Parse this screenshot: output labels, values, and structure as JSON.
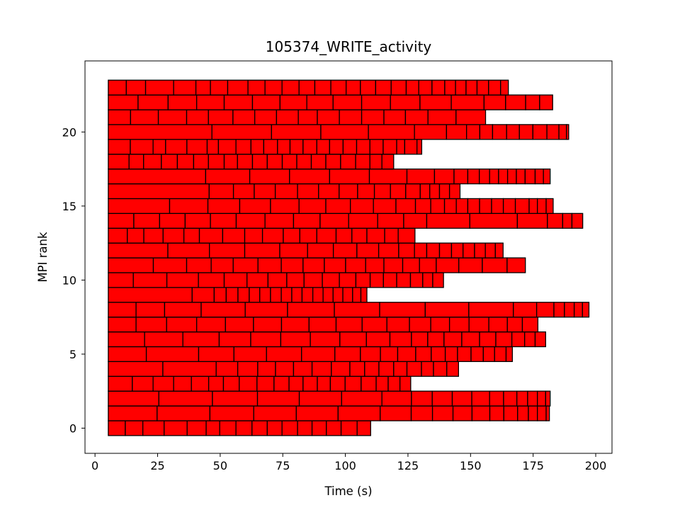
{
  "chart_data": {
    "type": "bar",
    "orientation": "horizontal-gantt",
    "title": "105374_WRITE_activity",
    "xlabel": "Time (s)",
    "ylabel": "MPI rank",
    "xlim": [
      -4,
      206.5
    ],
    "ylim": [
      -1.7,
      24.8
    ],
    "xticks": [
      0,
      25,
      50,
      75,
      100,
      125,
      150,
      175,
      200
    ],
    "xtick_labels": [
      "0",
      "25",
      "50",
      "75",
      "100",
      "125",
      "150",
      "175",
      "200"
    ],
    "yticks": [
      0,
      5,
      10,
      15,
      20
    ],
    "ytick_labels": [
      "0",
      "5",
      "10",
      "15",
      "20"
    ],
    "grid": false,
    "bar_color": "#ff0000",
    "edge_color": "#000000",
    "bar_height": 1,
    "ranks": [
      {
        "rank": 0,
        "boundaries": [
          5.3,
          12.1,
          19.1,
          27.6,
          36.8,
          44.4,
          49.8,
          56.3,
          62.7,
          68.8,
          74.7,
          80.9,
          86.7,
          92.4,
          98.3,
          104.7,
          110.1
        ]
      },
      {
        "rank": 1,
        "boundaries": [
          5.3,
          24.8,
          45.9,
          63.4,
          80.4,
          97.1,
          113.9,
          126.3,
          134.8,
          143.0,
          150.6,
          157.7,
          163.3,
          168.8,
          173.1,
          176.7,
          180.2,
          181.5
        ]
      },
      {
        "rank": 2,
        "boundaries": [
          5.3,
          25.5,
          46.9,
          64.9,
          81.6,
          98.5,
          114.6,
          126.4,
          134.7,
          142.7,
          150.5,
          157.6,
          163.2,
          168.5,
          172.8,
          176.7,
          180.0,
          181.8
        ]
      },
      {
        "rank": 3,
        "boundaries": [
          5.3,
          14.9,
          23.2,
          31.4,
          38.5,
          45.4,
          51.3,
          57.6,
          64.7,
          71.5,
          77.5,
          83.1,
          88.8,
          94.0,
          99.9,
          106.3,
          112.3,
          117.1,
          121.8,
          126.1
        ]
      },
      {
        "rank": 4,
        "boundaries": [
          5.3,
          27.1,
          48.4,
          57.0,
          65.0,
          72.1,
          79.3,
          86.7,
          94.4,
          101.8,
          107.7,
          113.4,
          119.3,
          124.6,
          130.4,
          135.2,
          140.5,
          145.2
        ]
      },
      {
        "rank": 5,
        "boundaries": [
          5.3,
          20.5,
          41.4,
          55.5,
          68.5,
          82.5,
          95.8,
          106.0,
          114.0,
          120.9,
          128.1,
          134.3,
          139.9,
          144.8,
          150.2,
          155.1,
          159.6,
          164.2,
          166.7
        ]
      },
      {
        "rank": 6,
        "boundaries": [
          5.3,
          19.8,
          35.1,
          49.6,
          62.2,
          74.2,
          86.0,
          97.8,
          108.4,
          117.8,
          126.4,
          132.9,
          139.4,
          146.5,
          153.6,
          160.1,
          166.5,
          171.6,
          175.8,
          180.0
        ]
      },
      {
        "rank": 7,
        "boundaries": [
          5.3,
          16.4,
          28.6,
          40.6,
          52.1,
          63.3,
          74.5,
          85.5,
          96.3,
          106.7,
          116.6,
          125.6,
          134.1,
          141.6,
          149.4,
          157.3,
          164.7,
          170.7,
          176.9
        ]
      },
      {
        "rank": 8,
        "boundaries": [
          5.3,
          16.4,
          27.8,
          42.4,
          60.0,
          76.9,
          95.6,
          113.7,
          131.9,
          149.3,
          167.1,
          176.4,
          183.3,
          187.5,
          191.4,
          194.7,
          197.3
        ]
      },
      {
        "rank": 9,
        "boundaries": [
          5.3,
          38.8,
          47.6,
          52.4,
          57.1,
          61.6,
          65.8,
          70.1,
          74.4,
          78.6,
          82.7,
          87.0,
          91.1,
          95.1,
          99.0,
          102.9,
          106.2,
          108.6
        ]
      },
      {
        "rank": 10,
        "boundaries": [
          5.3,
          15.3,
          28.7,
          41.3,
          51.6,
          60.7,
          69.1,
          76.6,
          83.5,
          90.8,
          97.6,
          104.2,
          109.9,
          115.2,
          120.5,
          126.0,
          130.9,
          134.9,
          139.2
        ]
      },
      {
        "rank": 11,
        "boundaries": [
          5.3,
          23.3,
          36.6,
          46.4,
          55.2,
          65.1,
          74.4,
          83.1,
          91.6,
          100.1,
          108.1,
          115.4,
          122.9,
          129.6,
          136.3,
          145.3,
          154.7,
          164.6,
          171.9
        ]
      },
      {
        "rank": 12,
        "boundaries": [
          5.3,
          29.1,
          45.7,
          59.8,
          73.8,
          84.9,
          95.2,
          104.6,
          113.3,
          121.3,
          127.6,
          132.5,
          137.6,
          142.4,
          147.0,
          151.6,
          155.9,
          159.9,
          163.0
        ]
      },
      {
        "rank": 13,
        "boundaries": [
          5.3,
          12.9,
          19.5,
          27.2,
          35.5,
          41.7,
          51.0,
          59.8,
          66.9,
          75.2,
          81.8,
          88.6,
          96.3,
          102.6,
          108.6,
          115.7,
          121.1,
          127.8
        ]
      },
      {
        "rank": 14,
        "boundaries": [
          5.3,
          15.5,
          25.8,
          36.0,
          46.1,
          56.4,
          67.9,
          79.3,
          89.9,
          101.3,
          112.9,
          123.3,
          132.5,
          149.7,
          168.7,
          180.7,
          186.8,
          190.5,
          194.8
        ]
      },
      {
        "rank": 15,
        "boundaries": [
          5.3,
          29.8,
          45.1,
          57.8,
          70.1,
          81.5,
          92.2,
          102.0,
          111.2,
          120.2,
          128.0,
          134.1,
          139.6,
          144.3,
          148.9,
          153.6,
          158.4,
          163.1,
          167.9,
          173.4,
          176.7,
          180.2,
          183.0
        ]
      },
      {
        "rank": 16,
        "boundaries": [
          5.3,
          45.6,
          55.3,
          63.6,
          72.0,
          80.9,
          89.3,
          97.5,
          104.9,
          111.6,
          118.0,
          124.1,
          129.9,
          133.7,
          137.6,
          141.6,
          145.8
        ]
      },
      {
        "rank": 17,
        "boundaries": [
          5.3,
          44.2,
          61.8,
          77.7,
          93.7,
          109.6,
          124.6,
          135.6,
          143.4,
          148.9,
          153.5,
          157.6,
          161.2,
          164.8,
          168.3,
          171.8,
          175.8,
          179.1,
          181.8
        ]
      },
      {
        "rank": 18,
        "boundaries": [
          5.3,
          13.6,
          19.4,
          26.5,
          32.9,
          39.4,
          45.3,
          51.6,
          56.9,
          62.9,
          68.8,
          74.8,
          80.6,
          86.4,
          92.2,
          98.1,
          104.1,
          109.8,
          114.6,
          119.3
        ]
      },
      {
        "rank": 18.3,
        "boundaries": []
      },
      {
        "rank": 19,
        "boundaries": [
          5.3,
          14.1,
          23.2,
          28.2,
          36.7,
          44.8,
          49.3,
          56.3,
          62.3,
          67.4,
          72.9,
          77.9,
          83.1,
          88.6,
          93.7,
          99.1,
          104.5,
          109.8,
          115.1,
          120.5,
          123.7,
          128.6,
          130.5
        ]
      },
      {
        "rank": 20,
        "boundaries": [
          5.3,
          46.7,
          70.5,
          90.2,
          109.2,
          127.6,
          140.4,
          148.4,
          153.7,
          158.8,
          164.4,
          169.5,
          174.9,
          180.5,
          185.3,
          188.3,
          189.2
        ]
      },
      {
        "rank": 21,
        "boundaries": [
          5.3,
          14.2,
          25.3,
          36.6,
          45.3,
          55.1,
          63.8,
          72.5,
          81.2,
          88.8,
          97.6,
          106.5,
          115.4,
          124.0,
          133.0,
          144.2,
          156.0
        ]
      },
      {
        "rank": 22,
        "boundaries": [
          5.3,
          17.2,
          29.2,
          40.6,
          51.6,
          62.9,
          73.9,
          84.6,
          95.1,
          106.5,
          118.0,
          129.8,
          142.3,
          155.4,
          164.0,
          172.0,
          177.6,
          182.8
        ]
      },
      {
        "rank": 23,
        "boundaries": [
          5.3,
          12.5,
          20.2,
          31.4,
          40.3,
          46.1,
          53.0,
          61.1,
          67.9,
          74.7,
          81.5,
          87.8,
          94.2,
          100.3,
          106.0,
          112.1,
          118.3,
          124.3,
          129.3,
          134.6,
          139.7,
          144.0,
          148.2,
          152.6,
          157.2,
          162.0,
          165.1
        ]
      }
    ]
  }
}
